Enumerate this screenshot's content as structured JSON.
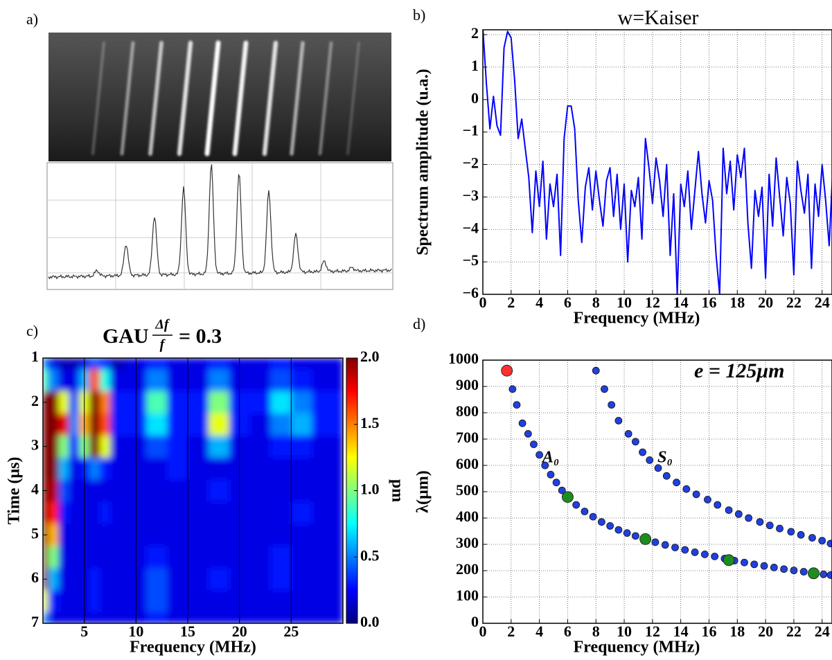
{
  "panel_labels": [
    "a)",
    "b)",
    "c)",
    "d)"
  ],
  "chart_data": [
    {
      "type": "line",
      "title": "w=Kaiser",
      "xlabel": "Frequency (MHz)",
      "ylabel": "Spectrum amplitude (u.a.)",
      "x": [
        0,
        0.25,
        0.5,
        0.75,
        1,
        1.25,
        1.5,
        1.75,
        2,
        2.25,
        2.5,
        2.75,
        3,
        3.25,
        3.5,
        3.75,
        4,
        4.25,
        4.5,
        4.75,
        5,
        5.25,
        5.5,
        5.75,
        6,
        6.25,
        6.5,
        6.75,
        7,
        7.25,
        7.5,
        7.75,
        8,
        8.25,
        8.5,
        8.75,
        9,
        9.25,
        9.5,
        9.75,
        10,
        10.25,
        10.5,
        10.75,
        11,
        11.25,
        11.5,
        11.75,
        12,
        12.25,
        12.5,
        12.75,
        13,
        13.25,
        13.5,
        13.75,
        14,
        14.25,
        14.5,
        14.75,
        15,
        15.25,
        15.5,
        15.75,
        16,
        16.25,
        16.5,
        16.75,
        17,
        17.25,
        17.5,
        17.75,
        18,
        18.25,
        18.5,
        18.75,
        19,
        19.25,
        19.5,
        19.75,
        20,
        20.25,
        20.5,
        20.75,
        21,
        21.25,
        21.5,
        21.75,
        22,
        22.25,
        22.5,
        22.75,
        23,
        23.25,
        23.5,
        23.75,
        24,
        24.25,
        24.5,
        24.75
      ],
      "series": [
        {
          "color": "#0000ff",
          "values": [
            2.2,
            0.5,
            -0.9,
            0.1,
            -0.8,
            -1.1,
            1.6,
            2.1,
            1.9,
            0.6,
            -1.2,
            -0.6,
            -1.5,
            -2.4,
            -4.1,
            -2.2,
            -3.3,
            -1.9,
            -4.3,
            -2.6,
            -3.3,
            -2.3,
            -4.8,
            -1.2,
            -0.2,
            -0.2,
            -0.9,
            -3.1,
            -4.4,
            -2.7,
            -2.1,
            -3.4,
            -2.2,
            -3.1,
            -3.9,
            -2.5,
            -2.1,
            -3.6,
            -2.3,
            -4.0,
            -2.6,
            -5.0,
            -2.8,
            -3.3,
            -2.4,
            -4.3,
            -1.2,
            -2.1,
            -3.2,
            -1.8,
            -2.5,
            -3.6,
            -2.0,
            -4.8,
            -2.9,
            -6.0,
            -2.6,
            -3.3,
            -2.2,
            -4.0,
            -2.8,
            -1.6,
            -2.9,
            -3.8,
            -2.5,
            -3.1,
            -4.8,
            -6.0,
            -1.5,
            -2.9,
            -1.9,
            -3.4,
            -1.7,
            -2.4,
            -1.5,
            -3.8,
            -5.2,
            -2.8,
            -3.6,
            -2.7,
            -5.5,
            -2.3,
            -3.9,
            -1.8,
            -3.0,
            -4.2,
            -2.4,
            -3.2,
            -5.4,
            -1.9,
            -2.8,
            -3.5,
            -2.3,
            -5.2,
            -2.6,
            -3.6,
            -2.0,
            -3.1,
            -4.5,
            -2.2
          ]
        }
      ],
      "xlim": [
        0,
        24.7
      ],
      "ylim": [
        -6,
        2.15
      ],
      "xticks": [
        0,
        2,
        4,
        6,
        8,
        10,
        12,
        14,
        16,
        18,
        20,
        22,
        24
      ],
      "yticks": [
        {
          "value": -6,
          "label": "−6"
        },
        {
          "value": -5,
          "label": "−5"
        },
        {
          "value": -4,
          "label": "−4"
        },
        {
          "value": -3,
          "label": "−3"
        },
        {
          "value": -2,
          "label": "−2"
        },
        {
          "value": -1,
          "label": "−1"
        },
        0,
        1,
        2
      ],
      "grid": true
    },
    {
      "type": "heatmap",
      "title": "GAU",
      "title_fraction": [
        "Δf",
        "f"
      ],
      "title_suffix": "= 0.3",
      "xlabel": "Frequency (MHz)",
      "ylabel": "Time (μs)",
      "colorbar_label": "pm",
      "x": [
        1,
        2,
        3,
        4,
        5,
        6,
        7,
        8,
        10,
        12,
        14,
        16,
        18,
        20,
        22,
        24,
        26,
        28
      ],
      "y": [
        1,
        1.5,
        2,
        2.5,
        3,
        3.5,
        4,
        4.5,
        5,
        5.5,
        6,
        6.5,
        7
      ],
      "values": [
        [
          0.5,
          0.2,
          0.1,
          0.1,
          0.2,
          0.4,
          0.3,
          0.1,
          0.2,
          0.3,
          0.2,
          0.2,
          0.3,
          0.2,
          0.2,
          0.3,
          0.2,
          0.2
        ],
        [
          0.9,
          0.5,
          0.2,
          0.2,
          0.6,
          1.6,
          0.8,
          0.2,
          0.2,
          0.5,
          0.2,
          0.2,
          0.5,
          0.2,
          0.2,
          0.4,
          0.3,
          0.2
        ],
        [
          2.0,
          2.0,
          1.2,
          0.4,
          1.2,
          2.0,
          1.5,
          0.3,
          0.3,
          0.9,
          0.3,
          0.3,
          1.0,
          0.3,
          0.3,
          0.7,
          0.5,
          0.3
        ],
        [
          2.0,
          2.0,
          1.8,
          0.5,
          1.4,
          2.0,
          1.6,
          0.3,
          0.3,
          0.7,
          0.3,
          0.3,
          1.2,
          0.3,
          0.2,
          0.5,
          0.6,
          0.3
        ],
        [
          2.0,
          2.0,
          1.0,
          0.3,
          1.0,
          2.0,
          1.2,
          0.2,
          0.2,
          0.4,
          0.3,
          0.2,
          0.6,
          0.2,
          0.2,
          0.3,
          0.3,
          0.2
        ],
        [
          2.0,
          2.0,
          0.6,
          0.2,
          0.3,
          0.5,
          0.3,
          0.2,
          0.2,
          0.2,
          0.3,
          0.2,
          0.2,
          0.2,
          0.2,
          0.2,
          0.2,
          0.2
        ],
        [
          2.0,
          1.9,
          0.4,
          0.2,
          0.2,
          0.2,
          0.2,
          0.2,
          0.2,
          0.2,
          0.2,
          0.2,
          0.3,
          0.2,
          0.2,
          0.2,
          0.2,
          0.2
        ],
        [
          2.0,
          1.7,
          0.3,
          0.2,
          0.2,
          0.2,
          0.3,
          0.2,
          0.2,
          0.2,
          0.2,
          0.2,
          0.2,
          0.2,
          0.2,
          0.2,
          0.3,
          0.2
        ],
        [
          2.0,
          1.4,
          0.2,
          0.2,
          0.2,
          0.2,
          0.2,
          0.2,
          0.2,
          0.2,
          0.2,
          0.2,
          0.2,
          0.2,
          0.2,
          0.2,
          0.2,
          0.2
        ],
        [
          2.0,
          1.0,
          0.2,
          0.2,
          0.2,
          0.2,
          0.2,
          0.2,
          0.2,
          0.3,
          0.2,
          0.2,
          0.2,
          0.2,
          0.2,
          0.3,
          0.2,
          0.2
        ],
        [
          2.0,
          0.6,
          0.2,
          0.2,
          0.2,
          0.3,
          0.2,
          0.2,
          0.2,
          0.4,
          0.2,
          0.2,
          0.3,
          0.2,
          0.2,
          0.3,
          0.2,
          0.2
        ],
        [
          1.2,
          0.3,
          0.2,
          0.2,
          0.2,
          0.3,
          0.2,
          0.2,
          0.2,
          0.4,
          0.2,
          0.2,
          0.2,
          0.2,
          0.2,
          0.2,
          0.2,
          0.2
        ],
        [
          0.5,
          0.2,
          0.2,
          0.2,
          0.2,
          0.2,
          0.2,
          0.2,
          0.2,
          0.3,
          0.2,
          0.2,
          0.2,
          0.2,
          0.2,
          0.2,
          0.2,
          0.2
        ]
      ],
      "xlim": [
        1,
        30
      ],
      "ylim": [
        1,
        7
      ],
      "y_inverted": true,
      "zlim": [
        0,
        2
      ],
      "xticks": [
        5,
        10,
        15,
        20,
        25
      ],
      "yticks": [
        1,
        2,
        3,
        4,
        5,
        6,
        7
      ],
      "zticks": [
        {
          "value": 0,
          "label": "0.0"
        },
        {
          "value": 0.5,
          "label": "0.5"
        },
        {
          "value": 1,
          "label": "1.0"
        },
        {
          "value": 1.5,
          "label": "1.5"
        },
        {
          "value": 2,
          "label": "2.0"
        }
      ],
      "colormap": [
        "#00007f",
        "#0000ff",
        "#007fff",
        "#00ffff",
        "#7fff7f",
        "#ffff00",
        "#ff7f00",
        "#ff0000",
        "#7f0000"
      ],
      "xgrid": true
    },
    {
      "type": "scatter",
      "xlabel": "Frequency (MHz)",
      "ylabel": "λ(μm)",
      "annotation": "e = 125μm",
      "series": [
        {
          "name": "A₀",
          "color": "#2040e0",
          "x": [
            2.1,
            2.4,
            2.8,
            3.2,
            3.6,
            4.0,
            4.4,
            4.8,
            5.2,
            5.6,
            6.0,
            6.6,
            7.2,
            7.8,
            8.4,
            9.0,
            9.6,
            10.2,
            10.8,
            11.5,
            12.2,
            12.9,
            13.6,
            14.3,
            15.0,
            15.7,
            16.4,
            17.1,
            17.8,
            18.5,
            19.2,
            19.9,
            20.6,
            21.3,
            22.0,
            22.7,
            23.4,
            24.1,
            24.6
          ],
          "values": [
            890,
            830,
            760,
            720,
            680,
            640,
            600,
            565,
            535,
            505,
            480,
            450,
            425,
            405,
            385,
            370,
            355,
            343,
            332,
            320,
            308,
            298,
            288,
            279,
            270,
            262,
            254,
            246,
            238,
            231,
            224,
            218,
            212,
            206,
            201,
            196,
            191,
            186,
            183
          ]
        },
        {
          "name": "S₀",
          "color": "#2040e0",
          "x": [
            8.0,
            8.6,
            9.1,
            9.6,
            10.3,
            10.8,
            11.3,
            11.8,
            12.4,
            13.0,
            13.7,
            14.4,
            15.1,
            15.9,
            16.6,
            17.4,
            18.1,
            18.8,
            19.6,
            20.3,
            21.0,
            21.8,
            22.5,
            23.3,
            24.0,
            24.6
          ],
          "values": [
            960,
            890,
            830,
            770,
            720,
            690,
            650,
            620,
            590,
            560,
            535,
            510,
            490,
            470,
            450,
            430,
            415,
            400,
            385,
            372,
            360,
            348,
            336,
            325,
            314,
            303
          ]
        },
        {
          "color": "#ff3030",
          "x": [
            1.7
          ],
          "values": [
            960
          ]
        },
        {
          "color": "#1e8c1e",
          "x": [
            6.0,
            11.5,
            17.4,
            23.4
          ],
          "values": [
            480,
            320,
            240,
            190
          ]
        }
      ],
      "xlim": [
        0,
        24.7
      ],
      "ylim": [
        0,
        1000
      ],
      "xticks": [
        0,
        2,
        4,
        6,
        8,
        10,
        12,
        14,
        16,
        18,
        20,
        22,
        24
      ],
      "yticks": [
        0,
        100,
        200,
        300,
        400,
        500,
        600,
        700,
        800,
        900,
        1000
      ],
      "grid": true
    }
  ]
}
